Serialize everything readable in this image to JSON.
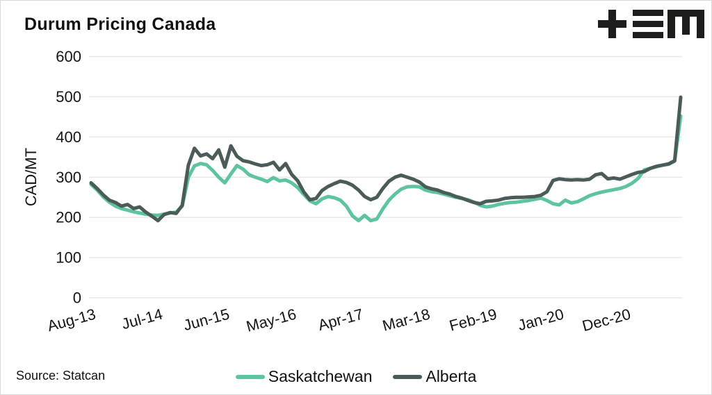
{
  "header": {
    "title": "Durum Pricing Canada",
    "logo_icon": "tem-logo",
    "logo_color": "#1d1d1b"
  },
  "footer": {
    "source": "Source: Statcan"
  },
  "legend": [
    {
      "label": "Saskatchewan",
      "color": "#5ec4a0"
    },
    {
      "label": "Alberta",
      "color": "#4a5b5a"
    }
  ],
  "chart_data": {
    "type": "line",
    "title": "Durum Pricing Canada",
    "xlabel": "",
    "ylabel": "CAD/MT",
    "ylim": [
      0,
      600
    ],
    "yticks": [
      0,
      100,
      200,
      300,
      400,
      500,
      600
    ],
    "grid": true,
    "grid_color": "#e7e7e7",
    "legend_position": "bottom",
    "x_frequency": "monthly",
    "x_ticks": [
      {
        "label": "Aug-13",
        "index": 0
      },
      {
        "label": "Jul-14",
        "index": 11
      },
      {
        "label": "Jun-15",
        "index": 22
      },
      {
        "label": "May-16",
        "index": 33
      },
      {
        "label": "Apr-17",
        "index": 44
      },
      {
        "label": "Mar-18",
        "index": 55
      },
      {
        "label": "Feb-19",
        "index": 66
      },
      {
        "label": "Jan-20",
        "index": 77
      },
      {
        "label": "Dec-20",
        "index": 88
      }
    ],
    "series": [
      {
        "name": "Saskatchewan",
        "color": "#5ec4a0",
        "values": [
          282,
          268,
          251,
          238,
          228,
          222,
          218,
          214,
          211,
          208,
          206,
          205,
          208,
          211,
          213,
          228,
          300,
          328,
          334,
          331,
          317,
          300,
          286,
          308,
          329,
          320,
          306,
          300,
          295,
          289,
          299,
          291,
          293,
          286,
          274,
          257,
          241,
          234,
          246,
          252,
          249,
          243,
          228,
          204,
          192,
          205,
          192,
          196,
          221,
          243,
          258,
          270,
          276,
          277,
          276,
          268,
          264,
          262,
          258,
          254,
          250,
          247,
          244,
          238,
          230,
          226,
          228,
          232,
          235,
          237,
          238,
          240,
          242,
          245,
          248,
          242,
          234,
          231,
          243,
          236,
          239,
          246,
          254,
          259,
          263,
          266,
          269,
          272,
          277,
          285,
          297,
          318,
          322,
          326,
          330,
          332,
          340,
          452
        ]
      },
      {
        "name": "Alberta",
        "color": "#4a5b5a",
        "values": [
          286,
          272,
          256,
          243,
          237,
          228,
          232,
          222,
          226,
          213,
          203,
          192,
          207,
          212,
          210,
          230,
          330,
          372,
          353,
          358,
          346,
          368,
          325,
          378,
          352,
          341,
          338,
          333,
          329,
          331,
          337,
          318,
          334,
          307,
          291,
          263,
          244,
          247,
          267,
          277,
          284,
          290,
          287,
          280,
          268,
          252,
          244,
          250,
          272,
          290,
          300,
          305,
          300,
          295,
          288,
          276,
          271,
          268,
          262,
          258,
          252,
          248,
          242,
          237,
          234,
          240,
          241,
          243,
          247,
          249,
          250,
          250,
          251,
          252,
          255,
          264,
          292,
          296,
          294,
          293,
          294,
          293,
          295,
          306,
          309,
          296,
          298,
          295,
          301,
          307,
          312,
          314,
          322,
          327,
          330,
          333,
          341,
          499
        ]
      }
    ]
  }
}
